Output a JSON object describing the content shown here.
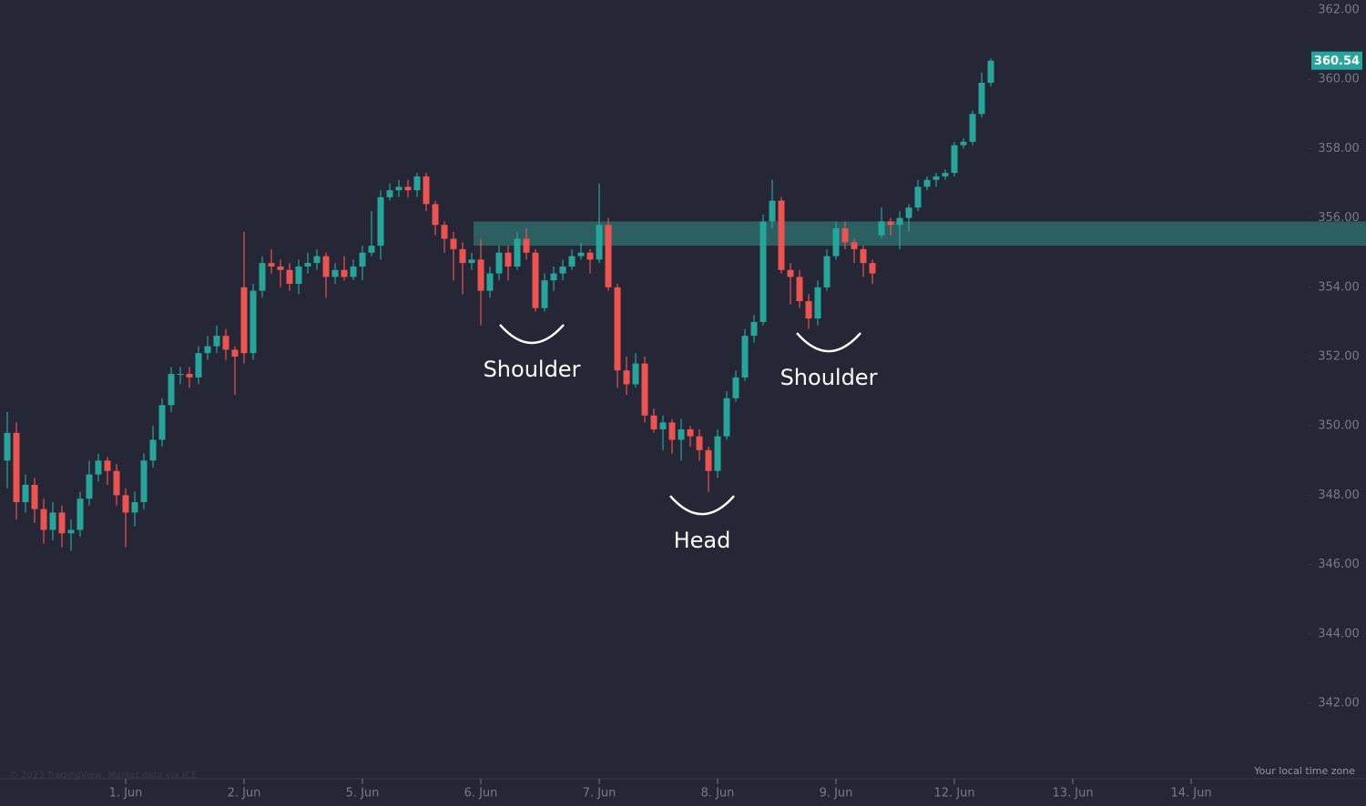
{
  "chart_data": {
    "type": "candlestick",
    "up_color": "#26a69a",
    "down_color": "#ef5350",
    "open": [
      349.0,
      349.8,
      347.8,
      348.3,
      347.6,
      347.0,
      347.5,
      346.9,
      347.0,
      347.9,
      348.6,
      349.0,
      348.7,
      348.0,
      347.5,
      347.8,
      349.0,
      349.6,
      350.6,
      351.5,
      351.5,
      351.4,
      352.1,
      352.3,
      352.6,
      352.2,
      354.0,
      352.1,
      353.9,
      354.7,
      354.6,
      354.5,
      354.1,
      354.6,
      354.7,
      354.9,
      354.3,
      354.5,
      354.3,
      354.6,
      355.0,
      355.2,
      356.6,
      356.8,
      356.9,
      356.8,
      357.2,
      356.4,
      355.8,
      355.4,
      355.1,
      354.7,
      354.8,
      353.9,
      354.4,
      355.0,
      354.6,
      355.4,
      355.0,
      353.4,
      354.2,
      354.4,
      354.6,
      354.9,
      355.0,
      354.8,
      355.8,
      354.0,
      351.6,
      351.2,
      351.8,
      350.3,
      349.9,
      350.1,
      349.6,
      349.9,
      349.7,
      349.3,
      348.7,
      349.7,
      350.8,
      351.4,
      352.6,
      353.0,
      355.9,
      356.5,
      354.5,
      354.3,
      353.6,
      353.1,
      354.0,
      354.9,
      355.7,
      355.3,
      355.1,
      354.7,
      355.5,
      355.9,
      355.8,
      356.0,
      356.3,
      356.9,
      357.1,
      357.2,
      357.3,
      358.1,
      358.2,
      359.0,
      359.9
    ],
    "high": [
      350.4,
      350.1,
      348.6,
      348.5,
      347.9,
      347.8,
      347.7,
      347.3,
      348.1,
      349.0,
      349.2,
      349.1,
      348.9,
      348.2,
      348.1,
      349.2,
      350.0,
      350.8,
      351.7,
      351.7,
      351.7,
      352.3,
      352.6,
      352.9,
      352.8,
      352.3,
      355.6,
      354.1,
      354.9,
      355.1,
      354.8,
      354.7,
      354.8,
      355.0,
      355.1,
      355.0,
      354.7,
      354.9,
      354.8,
      355.2,
      356.2,
      356.8,
      357.0,
      357.1,
      357.1,
      357.3,
      357.3,
      356.5,
      355.9,
      355.6,
      355.3,
      355.0,
      355.4,
      354.6,
      355.2,
      355.2,
      355.6,
      355.7,
      355.1,
      354.4,
      354.6,
      354.8,
      355.1,
      355.3,
      355.1,
      357.0,
      356.0,
      354.1,
      352.0,
      352.1,
      352.0,
      350.5,
      350.3,
      350.2,
      350.2,
      350.0,
      349.9,
      349.4,
      349.9,
      351.0,
      351.6,
      352.8,
      353.2,
      356.1,
      357.1,
      356.6,
      354.7,
      354.5,
      353.8,
      354.2,
      355.1,
      355.9,
      355.9,
      355.4,
      355.2,
      354.8,
      356.3,
      356.0,
      356.2,
      356.4,
      357.1,
      357.2,
      357.3,
      357.4,
      358.2,
      358.3,
      359.1,
      360.2,
      360.6
    ],
    "low": [
      348.2,
      347.3,
      347.5,
      347.2,
      346.6,
      346.7,
      346.5,
      346.4,
      346.8,
      347.7,
      348.4,
      348.3,
      347.7,
      346.5,
      347.1,
      347.6,
      348.8,
      349.4,
      350.4,
      351.2,
      351.1,
      351.2,
      351.9,
      352.1,
      351.9,
      350.9,
      351.8,
      351.9,
      353.7,
      354.4,
      354.0,
      353.9,
      353.8,
      354.4,
      354.5,
      353.7,
      354.1,
      354.2,
      354.2,
      354.2,
      354.9,
      354.8,
      356.5,
      356.6,
      356.6,
      356.6,
      356.2,
      355.5,
      355.0,
      354.2,
      353.8,
      354.5,
      352.9,
      353.7,
      354.2,
      354.2,
      354.5,
      354.8,
      353.3,
      353.3,
      353.9,
      354.2,
      354.5,
      354.8,
      354.4,
      354.7,
      353.9,
      351.1,
      350.9,
      351.1,
      350.1,
      349.8,
      349.3,
      349.2,
      349.0,
      349.4,
      349.0,
      348.1,
      348.5,
      349.6,
      350.7,
      351.3,
      352.4,
      352.9,
      355.7,
      354.4,
      353.5,
      353.4,
      352.8,
      352.9,
      353.9,
      354.8,
      355.1,
      354.7,
      354.3,
      354.1,
      355.4,
      355.5,
      355.1,
      355.6,
      356.2,
      356.8,
      356.9,
      357.1,
      357.2,
      358.0,
      358.1,
      358.9,
      359.8
    ],
    "close": [
      349.8,
      347.8,
      348.3,
      347.6,
      347.0,
      347.5,
      346.9,
      347.0,
      347.9,
      348.6,
      349.0,
      348.7,
      348.0,
      347.5,
      347.8,
      349.0,
      349.6,
      350.6,
      351.5,
      351.5,
      351.4,
      352.1,
      352.3,
      352.6,
      352.2,
      352.0,
      352.1,
      353.9,
      354.7,
      354.6,
      354.5,
      354.1,
      354.6,
      354.7,
      354.9,
      354.3,
      354.5,
      354.3,
      354.6,
      355.0,
      355.2,
      356.6,
      356.8,
      356.9,
      356.8,
      357.2,
      356.4,
      355.8,
      355.4,
      355.1,
      354.7,
      354.8,
      353.9,
      354.4,
      355.0,
      354.6,
      355.4,
      355.0,
      353.4,
      354.2,
      354.4,
      354.6,
      354.9,
      355.0,
      354.8,
      355.8,
      354.0,
      351.6,
      351.2,
      351.8,
      350.3,
      349.9,
      350.1,
      349.6,
      349.9,
      349.7,
      349.3,
      348.7,
      349.7,
      350.8,
      351.4,
      352.6,
      353.0,
      355.9,
      356.5,
      354.5,
      354.3,
      353.6,
      353.1,
      354.0,
      354.9,
      355.7,
      355.3,
      355.1,
      354.7,
      354.4,
      355.9,
      355.8,
      356.0,
      356.3,
      356.9,
      357.1,
      357.2,
      357.3,
      358.1,
      358.2,
      359.0,
      359.9,
      360.54
    ],
    "xlim": [
      -0.8,
      142.2
    ],
    "xticks": [
      {
        "value": 13,
        "label": "1. Jun"
      },
      {
        "value": 26,
        "label": "2. Jun"
      },
      {
        "value": 39,
        "label": "5. Jun"
      },
      {
        "value": 52,
        "label": "6. Jun"
      },
      {
        "value": 65,
        "label": "7. Jun"
      },
      {
        "value": 78,
        "label": "8. Jun"
      },
      {
        "value": 91,
        "label": "9. Jun"
      },
      {
        "value": 104,
        "label": "12. Jun"
      },
      {
        "value": 117,
        "label": "13. Jun"
      },
      {
        "value": 130,
        "label": "14. Jun"
      }
    ],
    "ylim": [
      339.82,
      362.29
    ],
    "yticks": [
      {
        "value": 342,
        "label": "342.00"
      },
      {
        "value": 344,
        "label": "344.00"
      },
      {
        "value": 346,
        "label": "346.00"
      },
      {
        "value": 348,
        "label": "348.00"
      },
      {
        "value": 350,
        "label": "350.00"
      },
      {
        "value": 352,
        "label": "352.00"
      },
      {
        "value": 354,
        "label": "354.00"
      },
      {
        "value": 356,
        "label": "356.00"
      },
      {
        "value": 358,
        "label": "358.00"
      },
      {
        "value": 360,
        "label": "360.00"
      },
      {
        "value": 362,
        "label": "362.00"
      }
    ],
    "zone": {
      "low": 355.2,
      "high": 355.9,
      "start": 51.2,
      "color": "#2e6a6a"
    },
    "annotations": [
      {
        "text": "Shoulder",
        "x": 57.6,
        "y": 352.92
      },
      {
        "text": "Head",
        "x": 76.3,
        "y": 347.98
      },
      {
        "text": "Shoulder",
        "x": 90.2,
        "y": 352.68
      }
    ],
    "time_zone_note": "Your local time zone",
    "watermark": "© 2023 TradingView, Market data via ICE"
  }
}
